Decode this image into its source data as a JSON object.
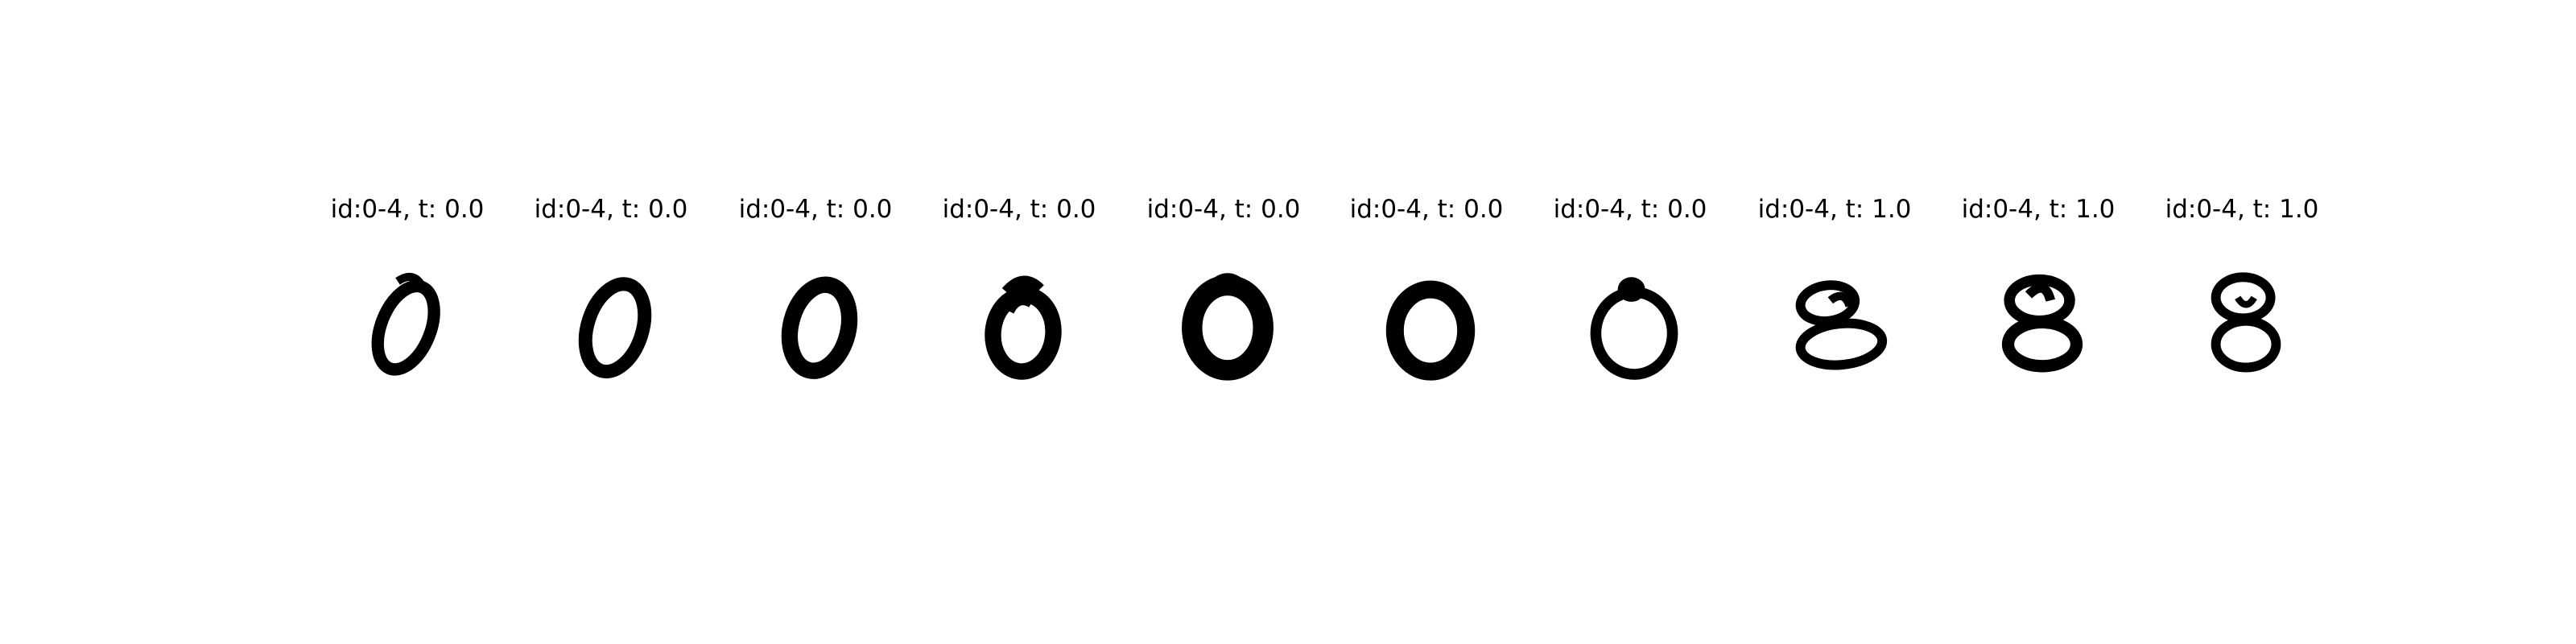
{
  "panels": [
    {
      "title": "id:0-4, t: 0.0",
      "digit_icon": "digit-zero-icon"
    },
    {
      "title": "id:0-4, t: 0.0",
      "digit_icon": "digit-zero-icon"
    },
    {
      "title": "id:0-4, t: 0.0",
      "digit_icon": "digit-zero-icon"
    },
    {
      "title": "id:0-4, t: 0.0",
      "digit_icon": "digit-zero-icon"
    },
    {
      "title": "id:0-4, t: 0.0",
      "digit_icon": "digit-zero-icon"
    },
    {
      "title": "id:0-4, t: 0.0",
      "digit_icon": "digit-zero-icon"
    },
    {
      "title": "id:0-4, t: 0.0",
      "digit_icon": "digit-zero-icon"
    },
    {
      "title": "id:0-4, t: 1.0",
      "digit_icon": "digit-eight-icon"
    },
    {
      "title": "id:0-4, t: 1.0",
      "digit_icon": "digit-eight-icon"
    },
    {
      "title": "id:0-4, t: 1.0",
      "digit_icon": "digit-eight-icon"
    }
  ],
  "colors": {
    "ink": "#000000",
    "background": "#ffffff"
  }
}
